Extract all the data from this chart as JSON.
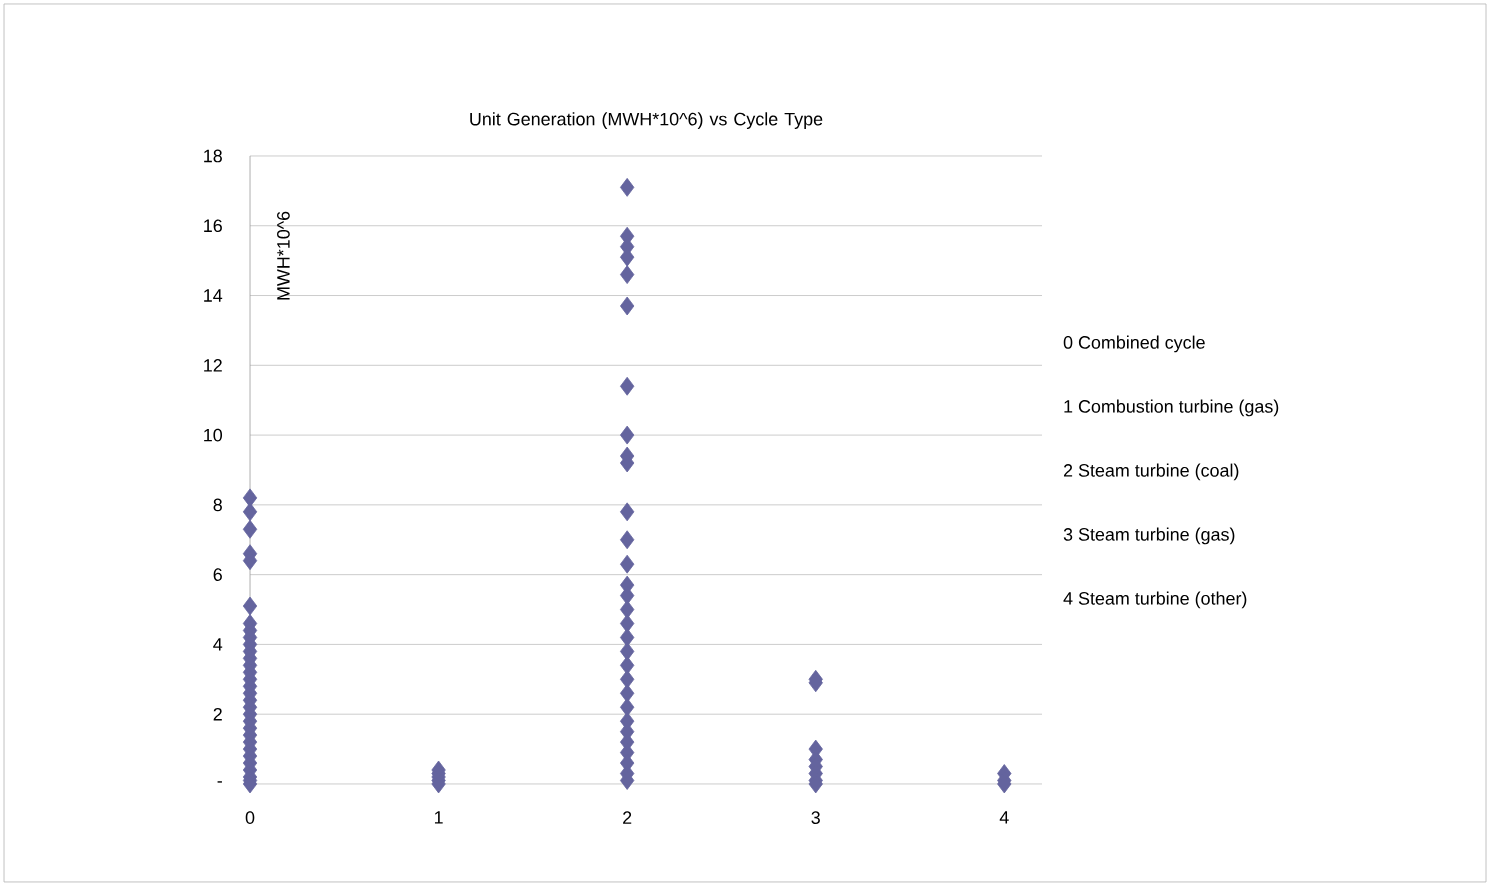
{
  "chart_data": {
    "type": "scatter",
    "title": "Unit Generation (MWH*10^6) vs Cycle Type",
    "ylabel": "MWH*10^6",
    "x": [
      0,
      0,
      0,
      0,
      0,
      0,
      0,
      0,
      0,
      0,
      0,
      0,
      0,
      0,
      0,
      0,
      0,
      0,
      0,
      0,
      0,
      0,
      0,
      0,
      0,
      0,
      0,
      0,
      0,
      0,
      0,
      1,
      1,
      1,
      1,
      1,
      2,
      2,
      2,
      2,
      2,
      2,
      2,
      2,
      2,
      2,
      2,
      2,
      2,
      2,
      2,
      2,
      2,
      2,
      2,
      2,
      2,
      2,
      2,
      2,
      2,
      2,
      2,
      2,
      2,
      2,
      3,
      3,
      3,
      3,
      3,
      3,
      3,
      3,
      4,
      4,
      4
    ],
    "values": [
      8.2,
      7.8,
      7.3,
      6.6,
      6.4,
      5.1,
      4.6,
      4.4,
      4.2,
      4.0,
      3.8,
      3.6,
      3.4,
      3.2,
      3.0,
      2.8,
      2.6,
      2.4,
      2.2,
      2.0,
      1.8,
      1.6,
      1.4,
      1.2,
      1.0,
      0.8,
      0.6,
      0.4,
      0.2,
      0.1,
      0,
      0.4,
      0.3,
      0.2,
      0.1,
      0,
      17.1,
      15.7,
      15.4,
      15.1,
      14.6,
      13.7,
      11.4,
      10.0,
      9.4,
      9.2,
      7.8,
      7.0,
      6.3,
      5.7,
      5.4,
      5.0,
      4.6,
      4.2,
      3.8,
      3.4,
      3.0,
      2.6,
      2.2,
      1.8,
      1.5,
      1.2,
      0.9,
      0.6,
      0.3,
      0.1,
      3.0,
      2.9,
      1.0,
      0.7,
      0.5,
      0.3,
      0.1,
      0,
      0.3,
      0.1,
      0
    ],
    "color": "#64649e",
    "marker": "diamond",
    "grid": "y",
    "xlim": [
      0,
      4.2
    ],
    "xticks": [
      0,
      1,
      2,
      3,
      4
    ],
    "ylim": [
      0,
      18
    ],
    "yticks": [
      {
        "value": 0,
        "label": "-"
      },
      2,
      4,
      6,
      8,
      10,
      12,
      14,
      16,
      18
    ],
    "annotations": [
      "0  Combined cycle",
      "1  Combustion turbine (gas)",
      "2  Steam turbine (coal)",
      "3  Steam turbine (gas)",
      "4  Steam turbine (other)"
    ]
  }
}
